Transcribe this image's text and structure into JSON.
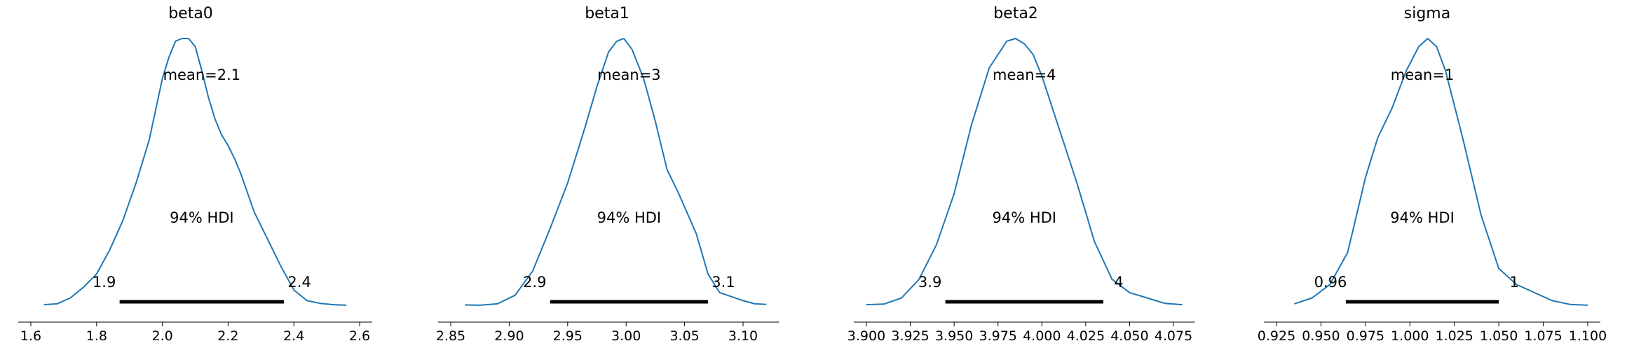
{
  "colors": {
    "density": "#1f77b4",
    "hdi_bar": "#000000",
    "axis": "#000000"
  },
  "chart_data": [
    {
      "type": "line",
      "title": "beta0",
      "mean_label": "mean=2.1",
      "hdi_label": "94% HDI",
      "hdi": [
        1.87,
        2.37
      ],
      "hdi_low_label": "1.9",
      "hdi_high_label": "2.4",
      "xlim": [
        1.6,
        2.6
      ],
      "xticks": [
        1.6,
        1.8,
        2.0,
        2.2,
        2.4,
        2.6
      ],
      "xtick_labels": [
        "1.6",
        "1.8",
        "2.0",
        "2.2",
        "2.4",
        "2.6"
      ],
      "density": {
        "x": [
          1.64,
          1.68,
          1.72,
          1.76,
          1.8,
          1.84,
          1.88,
          1.92,
          1.96,
          2.0,
          2.02,
          2.04,
          2.06,
          2.08,
          2.1,
          2.12,
          2.14,
          2.16,
          2.18,
          2.2,
          2.22,
          2.24,
          2.26,
          2.28,
          2.32,
          2.36,
          2.4,
          2.44,
          2.48,
          2.52,
          2.56
        ],
        "y": [
          0.005,
          0.008,
          0.03,
          0.07,
          0.12,
          0.21,
          0.32,
          0.46,
          0.62,
          0.85,
          0.93,
          0.99,
          1.0,
          1.0,
          0.97,
          0.88,
          0.78,
          0.7,
          0.64,
          0.6,
          0.55,
          0.49,
          0.42,
          0.35,
          0.25,
          0.15,
          0.06,
          0.02,
          0.01,
          0.005,
          0.003
        ]
      }
    },
    {
      "type": "line",
      "title": "beta1",
      "mean_label": "mean=3",
      "hdi_label": "94% HDI",
      "hdi": [
        2.935,
        3.07
      ],
      "hdi_low_label": "2.9",
      "hdi_high_label": "3.1",
      "xlim": [
        2.85,
        3.1
      ],
      "xticks": [
        2.85,
        2.9,
        2.95,
        3.0,
        3.05,
        3.1
      ],
      "xtick_labels": [
        "2.85",
        "2.90",
        "2.95",
        "3.00",
        "3.05",
        "3.10"
      ],
      "density": {
        "x": [
          2.862,
          2.875,
          2.89,
          2.905,
          2.92,
          2.935,
          2.95,
          2.965,
          2.975,
          2.985,
          2.992,
          2.998,
          3.005,
          3.015,
          3.025,
          3.035,
          3.045,
          3.06,
          3.07,
          3.08,
          3.09,
          3.1,
          3.11,
          3.12
        ],
        "y": [
          0.004,
          0.003,
          0.008,
          0.04,
          0.13,
          0.29,
          0.46,
          0.67,
          0.82,
          0.95,
          0.99,
          1.0,
          0.96,
          0.85,
          0.69,
          0.51,
          0.42,
          0.27,
          0.12,
          0.05,
          0.035,
          0.02,
          0.008,
          0.006
        ]
      }
    },
    {
      "type": "line",
      "title": "beta2",
      "mean_label": "mean=4",
      "hdi_label": "94% HDI",
      "hdi": [
        3.945,
        4.035
      ],
      "hdi_low_label": "3.9",
      "hdi_high_label": "4",
      "xlim": [
        3.9,
        4.075
      ],
      "xticks": [
        3.9,
        3.925,
        3.95,
        3.975,
        4.0,
        4.025,
        4.05,
        4.075
      ],
      "xtick_labels": [
        "3.900",
        "3.925",
        "3.950",
        "3.975",
        "4.000",
        "4.025",
        "4.050",
        "4.075"
      ],
      "density": {
        "x": [
          3.9,
          3.91,
          3.92,
          3.93,
          3.94,
          3.95,
          3.96,
          3.97,
          3.98,
          3.985,
          3.99,
          3.995,
          4.0,
          4.005,
          4.01,
          4.02,
          4.03,
          4.04,
          4.05,
          4.06,
          4.07,
          4.08
        ],
        "y": [
          0.005,
          0.007,
          0.03,
          0.1,
          0.23,
          0.42,
          0.68,
          0.89,
          0.99,
          1.0,
          0.98,
          0.94,
          0.86,
          0.76,
          0.66,
          0.46,
          0.24,
          0.1,
          0.05,
          0.03,
          0.01,
          0.005
        ]
      }
    },
    {
      "type": "line",
      "title": "sigma",
      "mean_label": "mean=1",
      "hdi_label": "94% HDI",
      "hdi": [
        0.964,
        1.05
      ],
      "hdi_low_label": "0.96",
      "hdi_high_label": "1",
      "xlim": [
        0.925,
        1.1
      ],
      "xticks": [
        0.925,
        0.95,
        0.975,
        1.0,
        1.025,
        1.05,
        1.075,
        1.1
      ],
      "xtick_labels": [
        "0.925",
        "0.950",
        "0.975",
        "1.000",
        "1.025",
        "1.050",
        "1.075",
        "1.100"
      ],
      "density": {
        "x": [
          0.935,
          0.945,
          0.955,
          0.965,
          0.975,
          0.982,
          0.99,
          0.998,
          1.005,
          1.01,
          1.015,
          1.02,
          1.03,
          1.04,
          1.05,
          1.06,
          1.07,
          1.08,
          1.09,
          1.1
        ],
        "y": [
          0.008,
          0.03,
          0.08,
          0.2,
          0.48,
          0.63,
          0.74,
          0.88,
          0.97,
          1.0,
          0.97,
          0.88,
          0.62,
          0.34,
          0.14,
          0.08,
          0.05,
          0.02,
          0.006,
          0.003
        ]
      }
    }
  ]
}
